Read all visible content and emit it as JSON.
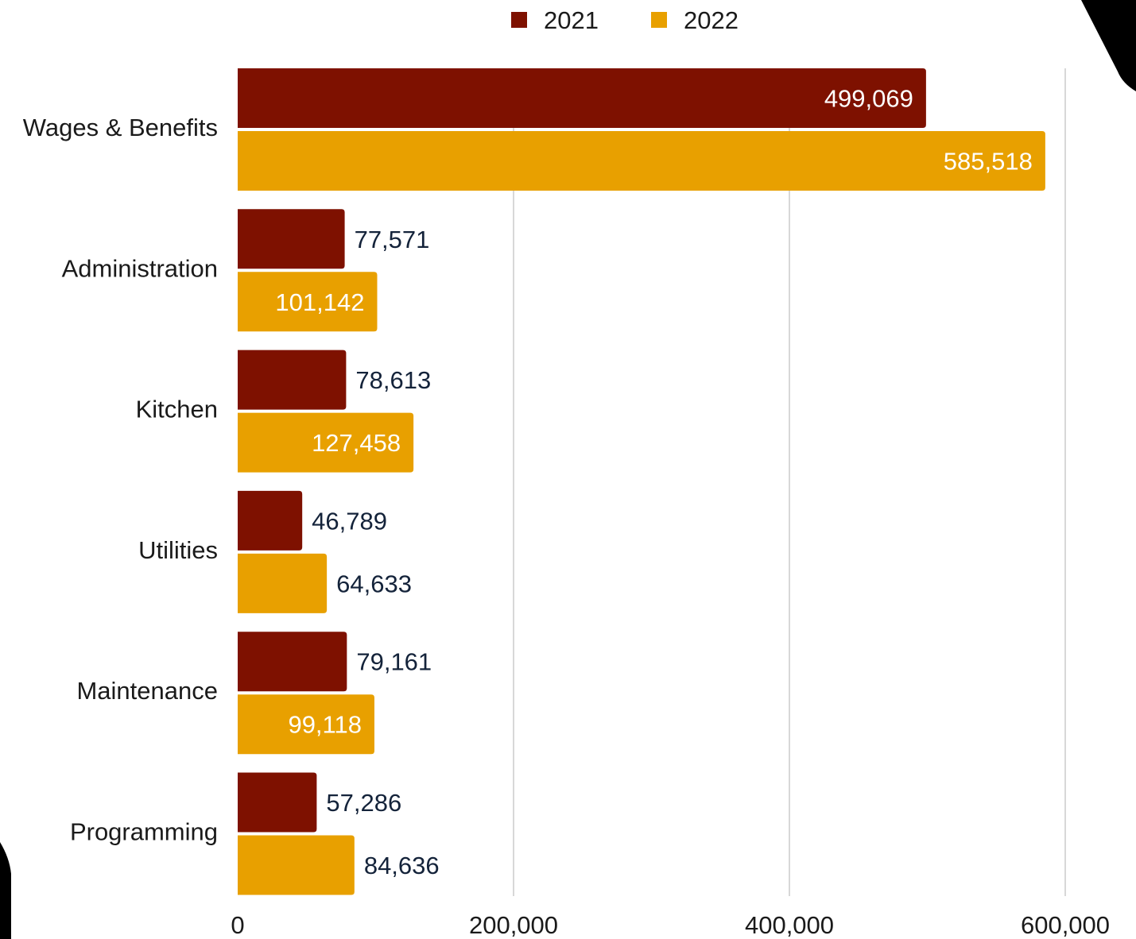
{
  "chart_data": {
    "type": "bar",
    "orientation": "horizontal",
    "title": "",
    "xlabel": "",
    "ylabel": "",
    "categories": [
      "Wages & Benefits",
      "Administration",
      "Kitchen",
      "Utilities",
      "Maintenance",
      "Programming"
    ],
    "series": [
      {
        "name": "2021",
        "color": "#7e1100",
        "values": [
          499069,
          77571,
          78613,
          46789,
          79161,
          57286
        ],
        "labels": [
          "499,069",
          "77,571",
          "78,613",
          "46,789",
          "79,161",
          "57,286"
        ]
      },
      {
        "name": "2022",
        "color": "#e8a000",
        "values": [
          585518,
          101142,
          127458,
          64633,
          99118,
          84636
        ],
        "labels": [
          "585,518",
          "101,142",
          "127,458",
          "64,633",
          "99,118",
          "84,636"
        ]
      }
    ],
    "xlim": [
      0,
      600000
    ],
    "xticks": [
      0,
      200000,
      400000,
      600000
    ],
    "xtick_labels": [
      "0",
      "200,000",
      "400,000",
      "600,000"
    ],
    "grid": true,
    "legend_position": "top-center"
  }
}
